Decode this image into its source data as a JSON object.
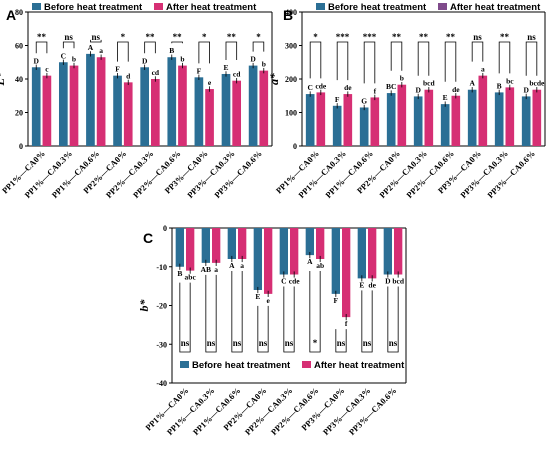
{
  "colors": {
    "before": "#2b6f95",
    "after": "#d62f74",
    "after_b": "#7f4b8b"
  },
  "chart_data": [
    {
      "panel": "A",
      "type": "bar",
      "ylabel": "L*",
      "ylim": [
        0,
        80
      ],
      "yticks": [
        0,
        20,
        40,
        60,
        80
      ],
      "categories": [
        "PP1%—CA0%",
        "PP1%—CA0.3%",
        "PP1%—CA0.6%",
        "PP2%—CA0%",
        "PP2%—CA0.3%",
        "PP2%—CA0.6%",
        "PP3%—CA0%",
        "PP3%—CA0.3%",
        "PP3%—CA0.6%"
      ],
      "series": [
        {
          "name": "Before heat treatment",
          "values": [
            47,
            50,
            55,
            42,
            47,
            53,
            41,
            43,
            48
          ],
          "letters": [
            "D",
            "C",
            "A",
            "F",
            "D",
            "B",
            "F",
            "E",
            "D"
          ]
        },
        {
          "name": "After heat treatment",
          "values": [
            42,
            48,
            53,
            38,
            40,
            48,
            34,
            39,
            45
          ],
          "letters": [
            "c",
            "b",
            "a",
            "d",
            "cd",
            "b",
            "e",
            "cd",
            "b"
          ]
        }
      ],
      "significance": [
        "**",
        "ns",
        "ns",
        "*",
        "**",
        "**",
        "*",
        "**",
        "*"
      ],
      "legend": [
        "Before heat treatment",
        "After heat treatment"
      ]
    },
    {
      "panel": "B",
      "type": "bar",
      "ylabel": "a*",
      "ylim": [
        0,
        400
      ],
      "yticks": [
        0,
        100,
        200,
        300,
        400
      ],
      "categories": [
        "PP1%—CA0%",
        "PP1%—CA0.3%",
        "PP1%—CA0.6%",
        "PP2%—CA0%",
        "PP2%—CA0.3%",
        "PP2%—CA0.6%",
        "PP3%—CA0%",
        "PP3%—CA0.3%",
        "PP3%—CA0.6%"
      ],
      "series": [
        {
          "name": "Before heat treatment",
          "values": [
            155,
            120,
            115,
            158,
            148,
            125,
            168,
            160,
            148
          ],
          "letters": [
            "C",
            "F",
            "G",
            "BC",
            "D",
            "E",
            "A",
            "B",
            "D"
          ]
        },
        {
          "name": "After heat treatment",
          "values": [
            160,
            155,
            145,
            183,
            168,
            150,
            210,
            175,
            168
          ],
          "letters": [
            "cde",
            "de",
            "f",
            "b",
            "bcd",
            "de",
            "a",
            "bc",
            "bcde"
          ]
        }
      ],
      "significance": [
        "*",
        "***",
        "***",
        "**",
        "**",
        "**",
        "ns",
        "**",
        "ns"
      ],
      "legend": [
        "Before heat treatment",
        "After heat treatment"
      ]
    },
    {
      "panel": "C",
      "type": "bar",
      "ylabel": "b*",
      "ylim": [
        -40,
        0
      ],
      "yticks": [
        -40,
        -30,
        -20,
        -10,
        0
      ],
      "categories": [
        "PP1%—CA0%",
        "PP1%—CA0.3%",
        "PP1%—CA0.6%",
        "PP2%—CA0%",
        "PP2%—CA0.3%",
        "PP2%—CA0.6%",
        "PP3%—CA0%",
        "PP3%—CA0.3%",
        "PP3%—CA0.6%"
      ],
      "series": [
        {
          "name": "Before heat treatment",
          "values": [
            -10,
            -9,
            -8,
            -16,
            -12,
            -7,
            -17,
            -13,
            -12
          ],
          "letters": [
            "B",
            "AB",
            "A",
            "E",
            "C",
            "A",
            "F",
            "E",
            "D"
          ]
        },
        {
          "name": "After heat treatment",
          "values": [
            -11,
            -9,
            -8,
            -17,
            -12,
            -8,
            -23,
            -13,
            -12
          ],
          "letters": [
            "abc",
            "a",
            "a",
            "e",
            "cde",
            "ab",
            "f",
            "de",
            "bcd"
          ]
        }
      ],
      "significance": [
        "ns",
        "ns",
        "ns",
        "ns",
        "ns",
        "*",
        "ns",
        "ns",
        "ns"
      ],
      "legend": [
        "Before heat treatment",
        "After heat treatment"
      ]
    }
  ]
}
